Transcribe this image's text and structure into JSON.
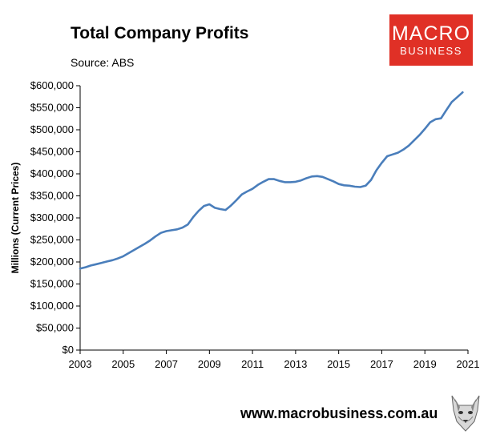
{
  "header": {
    "title": "Total Company Profits",
    "source": "Source: ABS"
  },
  "logo": {
    "line1": "MACRO",
    "line2": "BUSINESS",
    "bg_color": "#e03026"
  },
  "footer": {
    "url": "www.macrobusiness.com.au",
    "mascot_icon": "wolf-mascot-icon"
  },
  "chart_data": {
    "type": "line",
    "title": "Total Company Profits",
    "xlabel": "",
    "ylabel": "Millions (Current Prices)",
    "xlim": [
      2003,
      2021
    ],
    "ylim": [
      0,
      600000
    ],
    "x_ticks": [
      2003,
      2005,
      2007,
      2009,
      2011,
      2013,
      2015,
      2017,
      2019,
      2021
    ],
    "y_ticks": [
      0,
      50000,
      100000,
      150000,
      200000,
      250000,
      300000,
      350000,
      400000,
      450000,
      500000,
      550000,
      600000
    ],
    "y_tick_labels": [
      "$0",
      "$50,000",
      "$100,000",
      "$150,000",
      "$200,000",
      "$250,000",
      "$300,000",
      "$350,000",
      "$400,000",
      "$450,000",
      "$500,000",
      "$550,000",
      "$600,000"
    ],
    "grid": false,
    "series": [
      {
        "name": "Total Company Profits",
        "color": "#4a7ebb",
        "x": [
          2003.0,
          2003.25,
          2003.5,
          2003.75,
          2004.0,
          2004.25,
          2004.5,
          2004.75,
          2005.0,
          2005.25,
          2005.5,
          2005.75,
          2006.0,
          2006.25,
          2006.5,
          2006.75,
          2007.0,
          2007.25,
          2007.5,
          2007.75,
          2008.0,
          2008.25,
          2008.5,
          2008.75,
          2009.0,
          2009.25,
          2009.5,
          2009.75,
          2010.0,
          2010.25,
          2010.5,
          2010.75,
          2011.0,
          2011.25,
          2011.5,
          2011.75,
          2012.0,
          2012.25,
          2012.5,
          2012.75,
          2013.0,
          2013.25,
          2013.5,
          2013.75,
          2014.0,
          2014.25,
          2014.5,
          2014.75,
          2015.0,
          2015.25,
          2015.5,
          2015.75,
          2016.0,
          2016.25,
          2016.5,
          2016.75,
          2017.0,
          2017.25,
          2017.5,
          2017.75,
          2018.0,
          2018.25,
          2018.5,
          2018.75,
          2019.0,
          2019.25,
          2019.5,
          2019.75,
          2020.0,
          2020.25,
          2020.5,
          2020.75
        ],
        "values": [
          185000,
          188000,
          192000,
          195000,
          198000,
          201000,
          204000,
          208000,
          213000,
          220000,
          227000,
          234000,
          241000,
          249000,
          258000,
          266000,
          270000,
          272000,
          274000,
          278000,
          285000,
          302000,
          316000,
          327000,
          331000,
          323000,
          320000,
          318000,
          328000,
          340000,
          353000,
          360000,
          366000,
          375000,
          382000,
          388000,
          388000,
          384000,
          381000,
          381000,
          382000,
          385000,
          390000,
          394000,
          395000,
          393000,
          388000,
          383000,
          377000,
          374000,
          373000,
          371000,
          370000,
          373000,
          386000,
          408000,
          425000,
          440000,
          444000,
          448000,
          455000,
          464000,
          476000,
          488000,
          502000,
          517000,
          524000,
          526000,
          545000,
          563000,
          574000,
          585000
        ]
      }
    ]
  }
}
